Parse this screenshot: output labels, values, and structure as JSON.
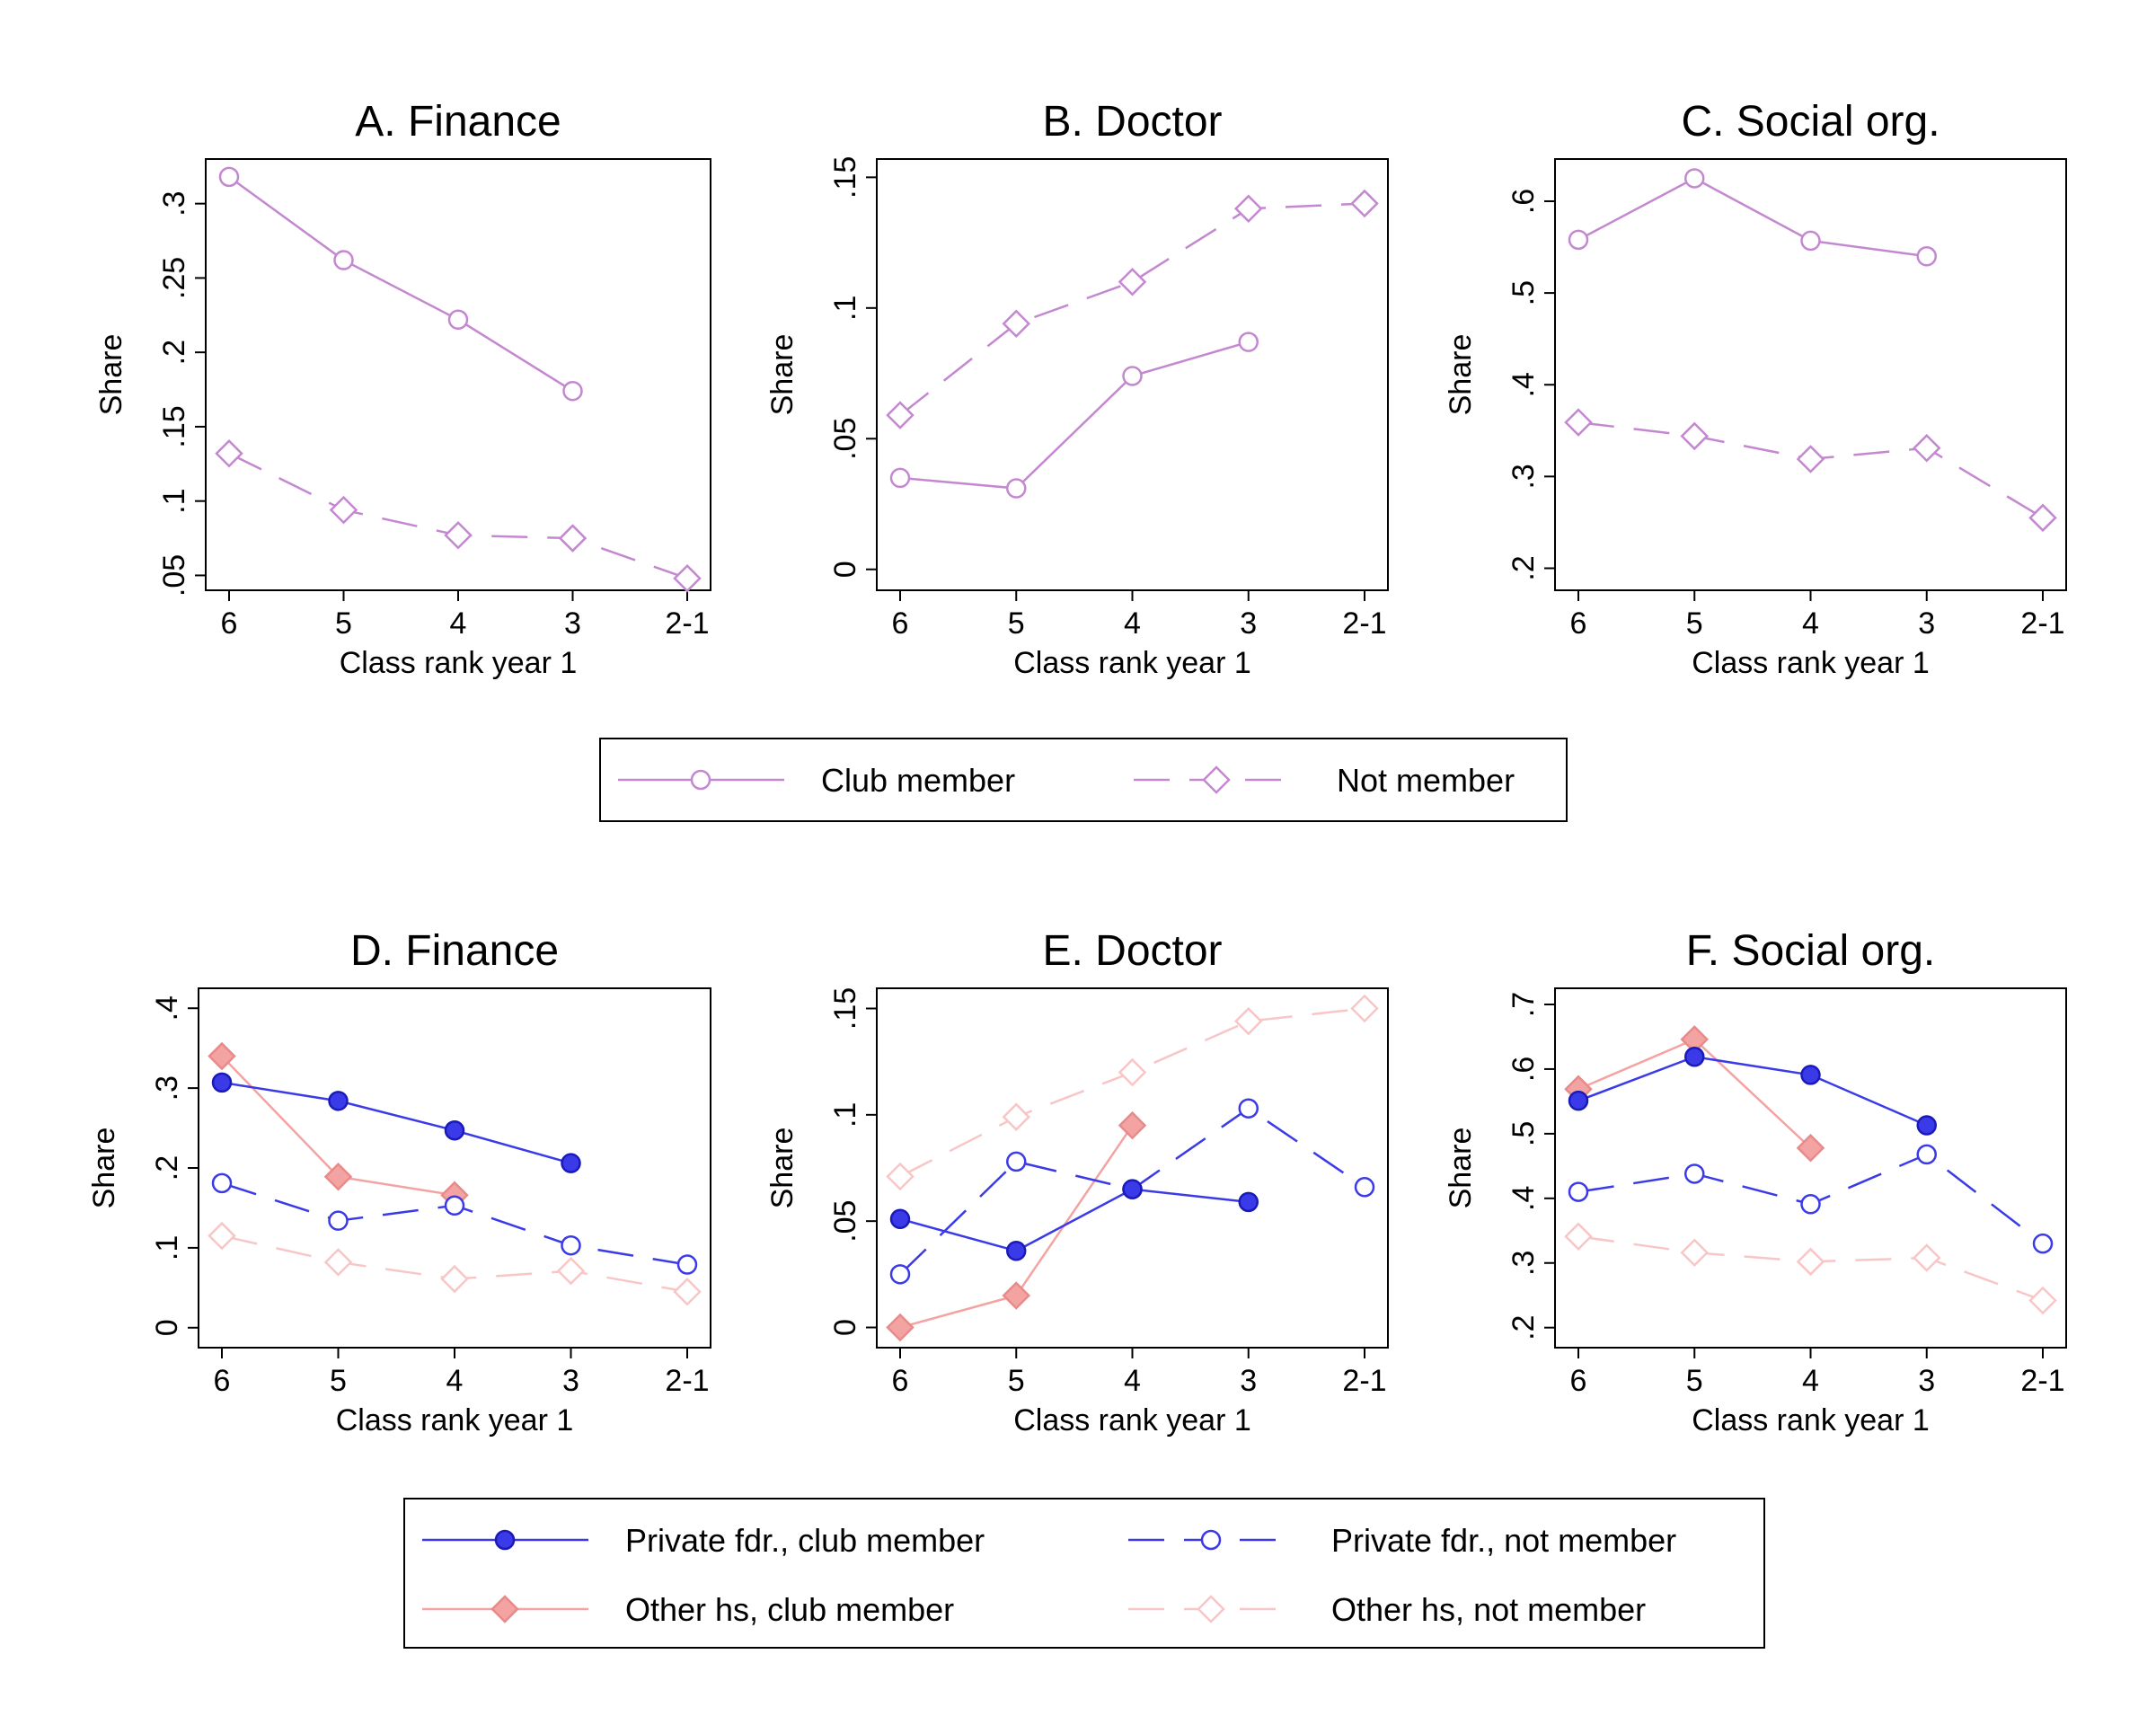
{
  "chart_data": [
    {
      "type": "line",
      "title": "A. Finance",
      "xlabel": "Class rank year 1",
      "ylabel": "Share",
      "categories": [
        "6",
        "5",
        "4",
        "3",
        "2-1"
      ],
      "yticks": [
        ".05",
        ".1",
        ".15",
        ".2",
        ".25",
        ".3"
      ],
      "ylim": [
        0.04,
        0.33
      ],
      "series": [
        {
          "key": "club",
          "values": [
            0.318,
            0.262,
            0.222,
            0.174,
            null
          ]
        },
        {
          "key": "not",
          "values": [
            0.132,
            0.094,
            0.077,
            0.075,
            0.048
          ]
        }
      ]
    },
    {
      "type": "line",
      "title": "B. Doctor",
      "xlabel": "Class rank year 1",
      "ylabel": "Share",
      "categories": [
        "6",
        "5",
        "4",
        "3",
        "2-1"
      ],
      "yticks": [
        "0",
        ".05",
        ".1",
        ".15"
      ],
      "ylim": [
        -0.008,
        0.157
      ],
      "series": [
        {
          "key": "club",
          "values": [
            0.035,
            0.031,
            0.074,
            0.087,
            null
          ]
        },
        {
          "key": "not",
          "values": [
            0.059,
            0.094,
            0.11,
            0.138,
            0.14
          ]
        }
      ]
    },
    {
      "type": "line",
      "title": "C. Social org.",
      "xlabel": "Class rank year 1",
      "ylabel": "Share",
      "categories": [
        "6",
        "5",
        "4",
        "3",
        "2-1"
      ],
      "yticks": [
        ".2",
        ".3",
        ".4",
        ".5",
        ".6"
      ],
      "ylim": [
        0.176,
        0.646
      ],
      "series": [
        {
          "key": "club",
          "values": [
            0.558,
            0.625,
            0.557,
            0.54,
            null
          ]
        },
        {
          "key": "not",
          "values": [
            0.359,
            0.344,
            0.319,
            0.331,
            0.255
          ]
        }
      ]
    },
    {
      "type": "line",
      "title": "D. Finance",
      "xlabel": "Class rank year 1",
      "ylabel": "Share",
      "categories": [
        "6",
        "5",
        "4",
        "3",
        "2-1"
      ],
      "yticks": [
        "0",
        ".1",
        ".2",
        ".3",
        ".4"
      ],
      "ylim": [
        -0.025,
        0.425
      ],
      "series": [
        {
          "key": "priv_club",
          "values": [
            0.307,
            0.284,
            0.247,
            0.206,
            null
          ]
        },
        {
          "key": "priv_not",
          "values": [
            0.181,
            0.134,
            0.153,
            0.103,
            0.079
          ]
        },
        {
          "key": "other_club",
          "values": [
            0.34,
            0.189,
            0.166,
            null,
            null
          ]
        },
        {
          "key": "other_not",
          "values": [
            0.115,
            0.082,
            0.061,
            0.071,
            0.045
          ]
        }
      ]
    },
    {
      "type": "line",
      "title": "E. Doctor",
      "xlabel": "Class rank year 1",
      "ylabel": "Share",
      "categories": [
        "6",
        "5",
        "4",
        "3",
        "2-1"
      ],
      "yticks": [
        "0",
        ".05",
        ".1",
        ".15"
      ],
      "ylim": [
        -0.0095,
        0.1595
      ],
      "series": [
        {
          "key": "priv_club",
          "values": [
            0.051,
            0.036,
            0.065,
            0.059,
            null
          ]
        },
        {
          "key": "priv_not",
          "values": [
            0.025,
            0.078,
            0.065,
            0.103,
            0.066
          ]
        },
        {
          "key": "other_club",
          "values": [
            0.0,
            0.015,
            0.095,
            null,
            null
          ]
        },
        {
          "key": "other_not",
          "values": [
            0.071,
            0.099,
            0.12,
            0.144,
            0.15
          ]
        }
      ]
    },
    {
      "type": "line",
      "title": "F. Social org.",
      "xlabel": "Class rank year 1",
      "ylabel": "Share",
      "categories": [
        "6",
        "5",
        "4",
        "3",
        "2-1"
      ],
      "yticks": [
        ".2",
        ".3",
        ".4",
        ".5",
        ".6",
        ".7"
      ],
      "ylim": [
        0.169,
        0.725
      ],
      "series": [
        {
          "key": "priv_club",
          "values": [
            0.551,
            0.619,
            0.591,
            0.513,
            null
          ]
        },
        {
          "key": "priv_not",
          "values": [
            0.41,
            0.438,
            0.391,
            0.468,
            0.33
          ]
        },
        {
          "key": "other_club",
          "values": [
            0.569,
            0.646,
            0.478,
            null,
            null
          ]
        },
        {
          "key": "other_not",
          "values": [
            0.341,
            0.316,
            0.302,
            0.308,
            0.242
          ]
        }
      ]
    }
  ],
  "styles": {
    "club": {
      "color": "#c488d0",
      "dash": "none",
      "marker": "circle-open"
    },
    "not": {
      "color": "#c488d0",
      "dash": "long-dash",
      "marker": "diamond-open"
    },
    "priv_club": {
      "color": "#3a3ae8",
      "dash": "none",
      "marker": "circle-filled"
    },
    "priv_not": {
      "color": "#3a3ae8",
      "dash": "long-dash",
      "marker": "circle-open"
    },
    "other_club": {
      "color": "#f4a3a3",
      "dash": "none",
      "marker": "diamond-filled"
    },
    "other_not": {
      "color": "#f8c6c6",
      "dash": "long-dash",
      "marker": "diamond-open"
    }
  },
  "legend1": [
    {
      "key": "club",
      "label": "Club member"
    },
    {
      "key": "not",
      "label": "Not member"
    }
  ],
  "legend2": [
    {
      "key": "priv_club",
      "label": "Private fdr., club member"
    },
    {
      "key": "priv_not",
      "label": "Private fdr., not member"
    },
    {
      "key": "other_club",
      "label": "Other hs, club member"
    },
    {
      "key": "other_not",
      "label": "Other hs, not member"
    }
  ]
}
